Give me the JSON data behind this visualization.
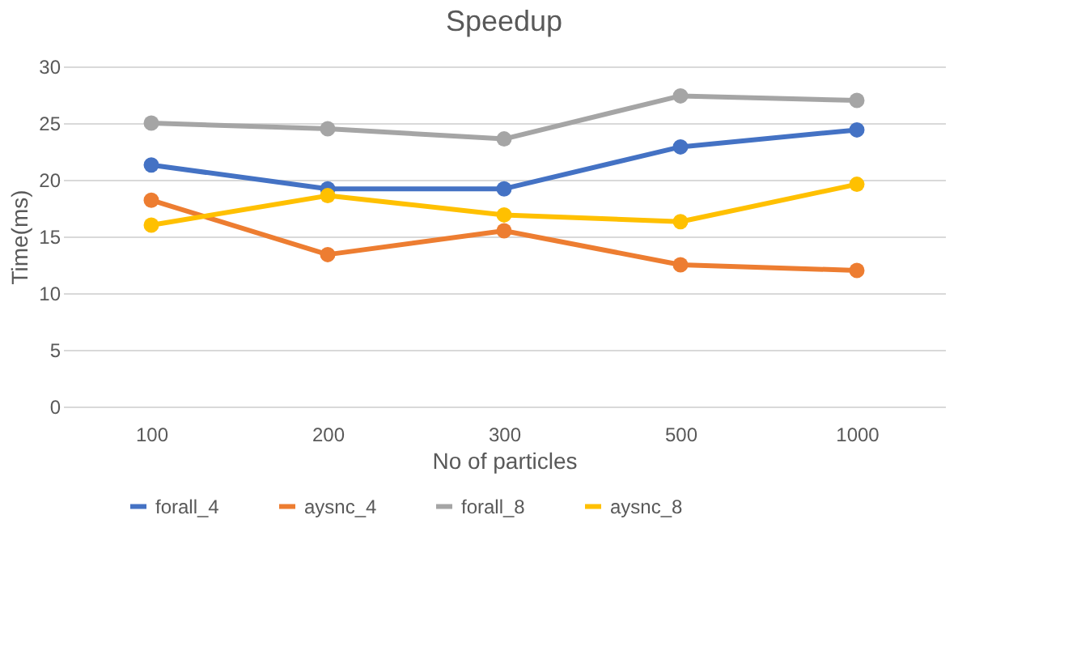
{
  "chart_data": {
    "type": "line",
    "title": "Speedup",
    "xlabel": "No of particles",
    "ylabel": "Time(ms)",
    "categories": [
      "100",
      "200",
      "300",
      "500",
      "1000"
    ],
    "ylim": [
      0,
      30
    ],
    "yticks": [
      0,
      5,
      10,
      15,
      20,
      25,
      30
    ],
    "grid": "y",
    "legend": "bottom",
    "marker": "circle",
    "line_style": "solid",
    "series": [
      {
        "name": "forall_4",
        "color": "#4472c4",
        "values": [
          21.3,
          19.2,
          19.2,
          22.9,
          24.4
        ]
      },
      {
        "name": "aysnc_4",
        "color": "#ed7d31",
        "values": [
          18.2,
          13.4,
          15.5,
          12.5,
          12.0
        ]
      },
      {
        "name": "forall_8",
        "color": "#a5a5a5",
        "values": [
          25.0,
          24.5,
          23.6,
          27.4,
          27.0
        ]
      },
      {
        "name": "aysnc_8",
        "color": "#ffc000",
        "values": [
          16.0,
          18.6,
          16.9,
          16.3,
          19.6
        ]
      }
    ]
  }
}
